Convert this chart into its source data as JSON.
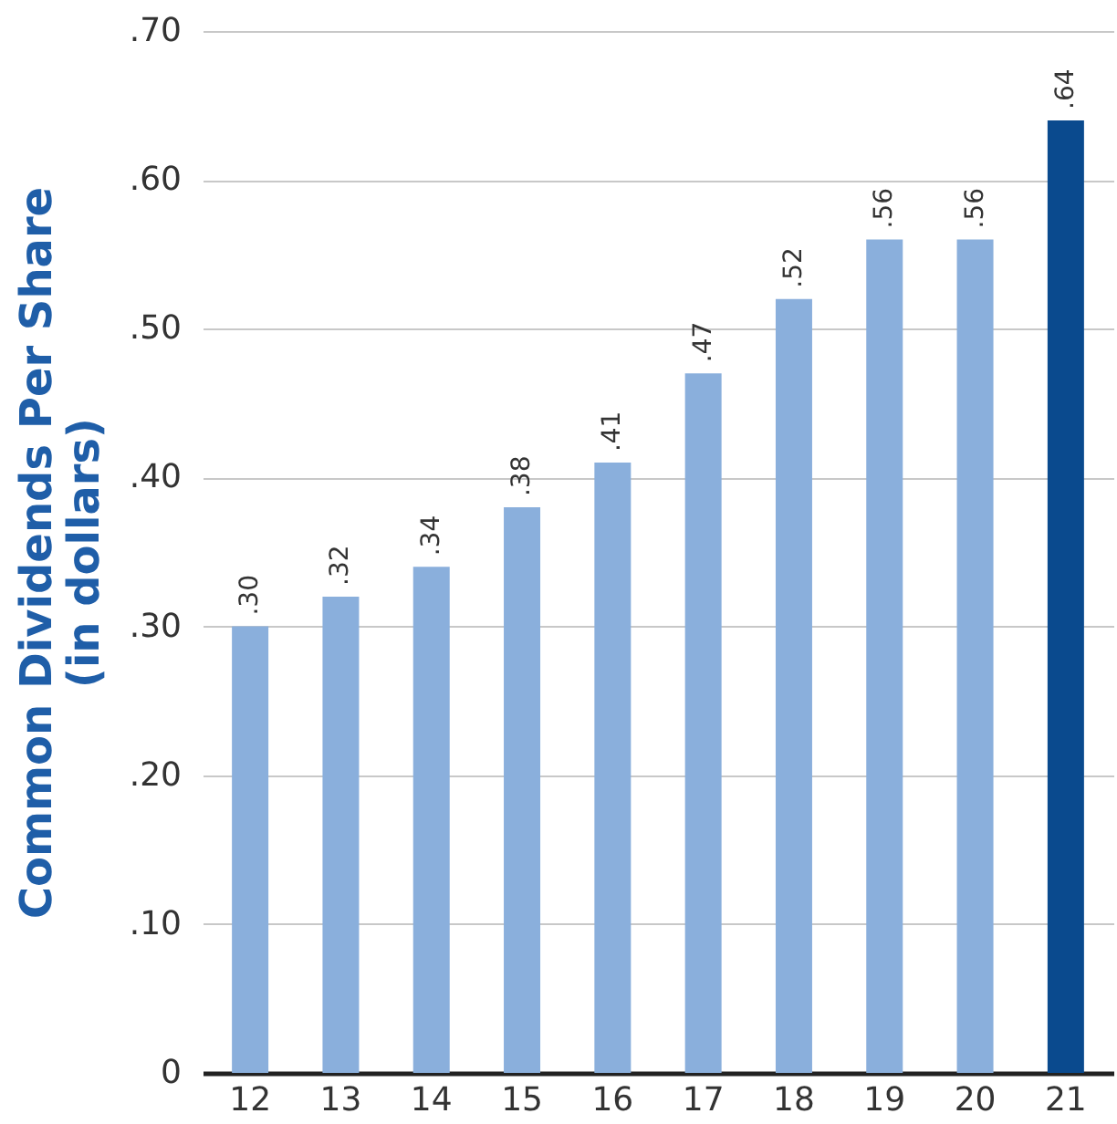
{
  "chart_data": {
    "type": "bar",
    "ylabel": "Common Dividends Per Share\n(in dollars)",
    "categories": [
      "12",
      "13",
      "14",
      "15",
      "16",
      "17",
      "18",
      "19",
      "20",
      "21"
    ],
    "values": [
      0.3,
      0.32,
      0.34,
      0.38,
      0.41,
      0.47,
      0.52,
      0.56,
      0.56,
      0.64
    ],
    "value_labels": [
      ".30",
      ".32",
      ".34",
      ".38",
      ".41",
      ".47",
      ".52",
      ".56",
      ".56",
      ".64"
    ],
    "colors": [
      "#8aafdc",
      "#8aafdc",
      "#8aafdc",
      "#8aafdc",
      "#8aafdc",
      "#8aafdc",
      "#8aafdc",
      "#8aafdc",
      "#8aafdc",
      "#0a4a8e"
    ],
    "ylim": [
      0,
      0.7
    ],
    "yticks": [
      {
        "value": 0,
        "label": "0"
      },
      {
        "value": 0.1,
        "label": ".10"
      },
      {
        "value": 0.2,
        "label": ".20"
      },
      {
        "value": 0.3,
        "label": ".30"
      },
      {
        "value": 0.4,
        "label": ".40"
      },
      {
        "value": 0.5,
        "label": ".50"
      },
      {
        "value": 0.6,
        "label": ".60"
      },
      {
        "value": 0.7,
        "label": ".70"
      }
    ],
    "grid": "y"
  }
}
